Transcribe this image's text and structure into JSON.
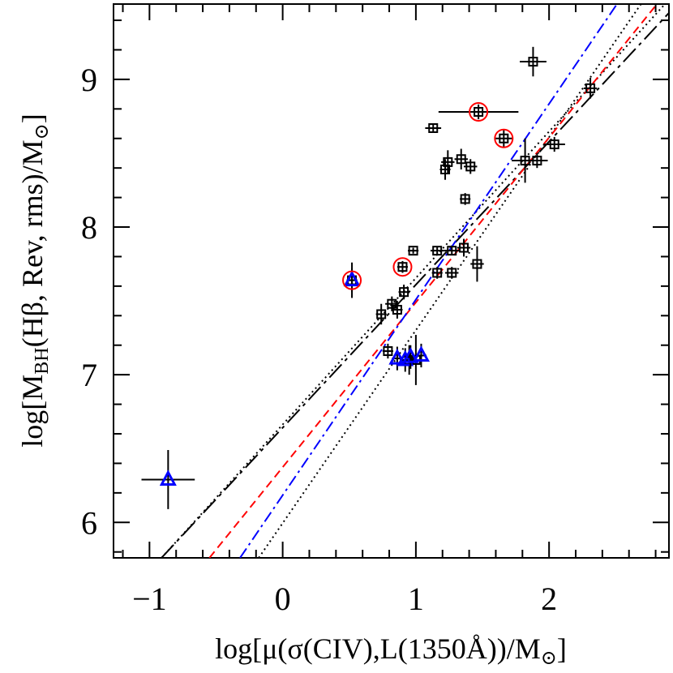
{
  "chart_data": {
    "type": "scatter",
    "xlabel": [
      "log[μ(σ(CIV),L(1350Å))/M",
      "⊙",
      "]"
    ],
    "ylabel": [
      "log[M",
      "BH",
      "(Hβ,  Rev,  rms)/M",
      "⊙",
      "]"
    ],
    "xlim": [
      -1.27,
      2.9
    ],
    "ylim": [
      5.76,
      9.51
    ],
    "xticks": [
      {
        "value": -1,
        "label": "−1"
      },
      0,
      1,
      2
    ],
    "yticks": [
      6,
      7,
      8,
      9
    ],
    "xminor": [
      -1.2,
      -0.8,
      -0.6,
      -0.4,
      -0.2,
      0.2,
      0.4,
      0.6,
      0.8,
      1.2,
      1.4,
      1.6,
      1.8,
      2.2,
      2.4,
      2.6,
      2.8
    ],
    "yminor": [
      5.8,
      6.2,
      6.4,
      6.6,
      6.8,
      7.2,
      7.4,
      7.6,
      7.8,
      8.2,
      8.4,
      8.6,
      8.8,
      9.2,
      9.4
    ],
    "series": [
      {
        "marker": "square",
        "color": "#000000",
        "x": [
          1.88,
          2.31,
          1.47,
          1.13,
          1.66,
          2.04,
          1.82,
          1.91,
          1.34,
          1.24,
          1.41,
          1.22,
          1.37,
          0.98,
          1.36,
          1.27,
          1.16,
          1.46,
          1.16,
          1.27,
          0.9,
          0.91,
          0.74,
          0.82,
          0.86,
          0.79,
          0.95,
          1.0,
          0.52
        ],
        "y": [
          9.12,
          8.94,
          8.78,
          8.67,
          8.6,
          8.56,
          8.45,
          8.45,
          8.46,
          8.44,
          8.41,
          8.39,
          8.19,
          7.84,
          7.86,
          7.84,
          7.84,
          7.75,
          7.69,
          7.69,
          7.73,
          7.56,
          7.41,
          7.48,
          7.44,
          7.16,
          7.1,
          7.1,
          7.64
        ],
        "xerr": [
          0.1,
          0.05,
          0.3,
          0.06,
          0.07,
          0.08,
          0.1,
          0.08,
          0.05,
          0.05,
          0.05,
          0.04,
          0.04,
          0.04,
          0.05,
          0.06,
          0.05,
          0.05,
          0.04,
          0.05,
          0.04,
          0.04,
          0.04,
          0.05,
          0.04,
          0.04,
          0.05,
          0.08,
          0.04
        ],
        "yerr": [
          0.1,
          0.07,
          0.05,
          0.03,
          0.06,
          0.05,
          0.15,
          0.05,
          0.07,
          0.08,
          0.05,
          0.07,
          0.04,
          0.02,
          0.06,
          0.03,
          0.03,
          0.12,
          0.04,
          0.04,
          0.04,
          0.05,
          0.07,
          0.05,
          0.06,
          0.05,
          0.1,
          0.17,
          0.12
        ]
      },
      {
        "marker": "triangle",
        "color": "#0000ff",
        "x": [
          0.52,
          0.86,
          0.92,
          0.96,
          1.04,
          -0.86
        ],
        "y": [
          7.64,
          7.11,
          7.1,
          7.12,
          7.13,
          6.29
        ],
        "xerr": [
          0.04,
          0.04,
          0.04,
          0.04,
          0.04,
          0.2
        ],
        "yerr": [
          0.08,
          0.08,
          0.08,
          0.08,
          0.08,
          0.2
        ]
      },
      {
        "marker": "circle",
        "color": "#ff0000",
        "x": [
          0.52,
          0.9,
          1.47,
          1.66
        ],
        "y": [
          7.64,
          7.73,
          8.78,
          8.6
        ]
      }
    ],
    "lines": [
      {
        "color": "#000000",
        "dash": "22 6 4 6",
        "x": [
          -0.91,
          2.9
        ],
        "y": [
          5.76,
          9.45
        ]
      },
      {
        "color": "#000000",
        "dash": "2 4",
        "x": [
          -0.91,
          2.87
        ],
        "y": [
          5.76,
          9.51
        ]
      },
      {
        "color": "#000000",
        "dash": "2 4",
        "x": [
          -0.18,
          2.69
        ],
        "y": [
          5.76,
          9.51
        ]
      },
      {
        "color": "#ff0000",
        "dash": "10 6",
        "x": [
          -0.55,
          2.81
        ],
        "y": [
          5.76,
          9.51
        ]
      },
      {
        "color": "#0000ff",
        "dash": "14 5 3 5",
        "x": [
          -0.32,
          2.51
        ],
        "y": [
          5.76,
          9.51
        ]
      }
    ]
  }
}
